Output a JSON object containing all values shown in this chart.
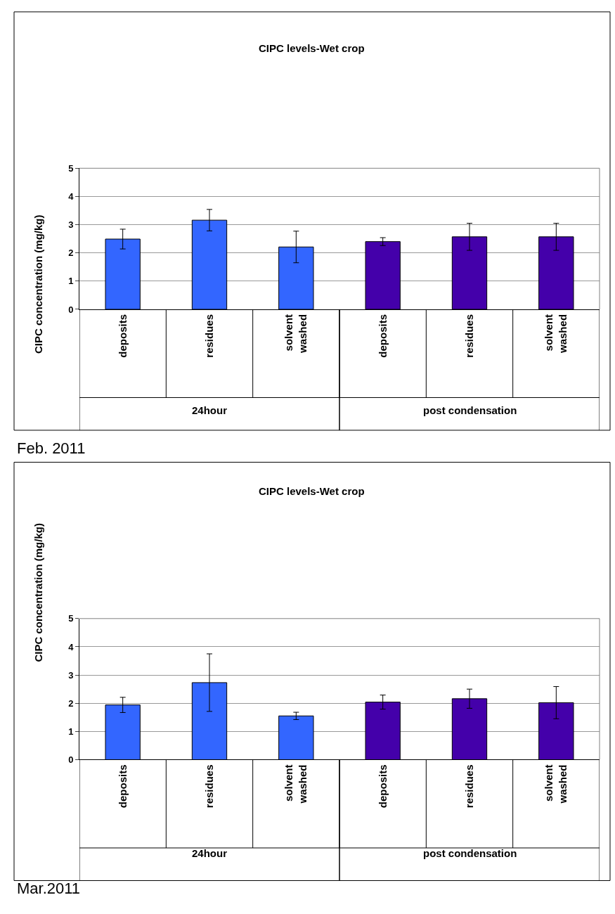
{
  "chart_data": [
    {
      "type": "bar",
      "title": "CIPC levels-Wet crop",
      "ylabel": "CIPC concentration (mg/kg)",
      "categories": [
        "deposits",
        "residues",
        "solvent washed",
        "deposits",
        "residues",
        "solvent washed"
      ],
      "values": [
        2.49,
        3.16,
        2.21,
        2.4,
        2.57,
        2.57
      ],
      "errors": [
        0.35,
        0.38,
        0.56,
        0.14,
        0.48,
        0.48
      ],
      "colors": [
        "#3366ff",
        "#3366ff",
        "#3366ff",
        "#4400aa",
        "#4400aa",
        "#4400aa"
      ],
      "ylim": [
        0,
        5
      ],
      "yticks": [
        0,
        1,
        2,
        3,
        4,
        5
      ],
      "grid": "y",
      "annotations": [
        "24hour",
        "post condensation",
        "Feb. 2011"
      ]
    },
    {
      "type": "bar",
      "title": "CIPC levels-Wet crop",
      "ylabel": "CIPC concentration (mg/kg)",
      "categories": [
        "deposits",
        "residues",
        "solvent washed",
        "deposits",
        "residues",
        "solvent washed"
      ],
      "values": [
        1.94,
        2.73,
        1.55,
        2.04,
        2.16,
        2.02
      ],
      "errors": [
        0.27,
        1.02,
        0.13,
        0.25,
        0.34,
        0.57
      ],
      "colors": [
        "#3366ff",
        "#3366ff",
        "#3366ff",
        "#4400aa",
        "#4400aa",
        "#4400aa"
      ],
      "ylim": [
        0,
        5
      ],
      "yticks": [
        0,
        1,
        2,
        3,
        4,
        5
      ],
      "grid": "y",
      "annotations": [
        "24hour",
        "post condensation",
        "Mar.2011"
      ]
    }
  ]
}
